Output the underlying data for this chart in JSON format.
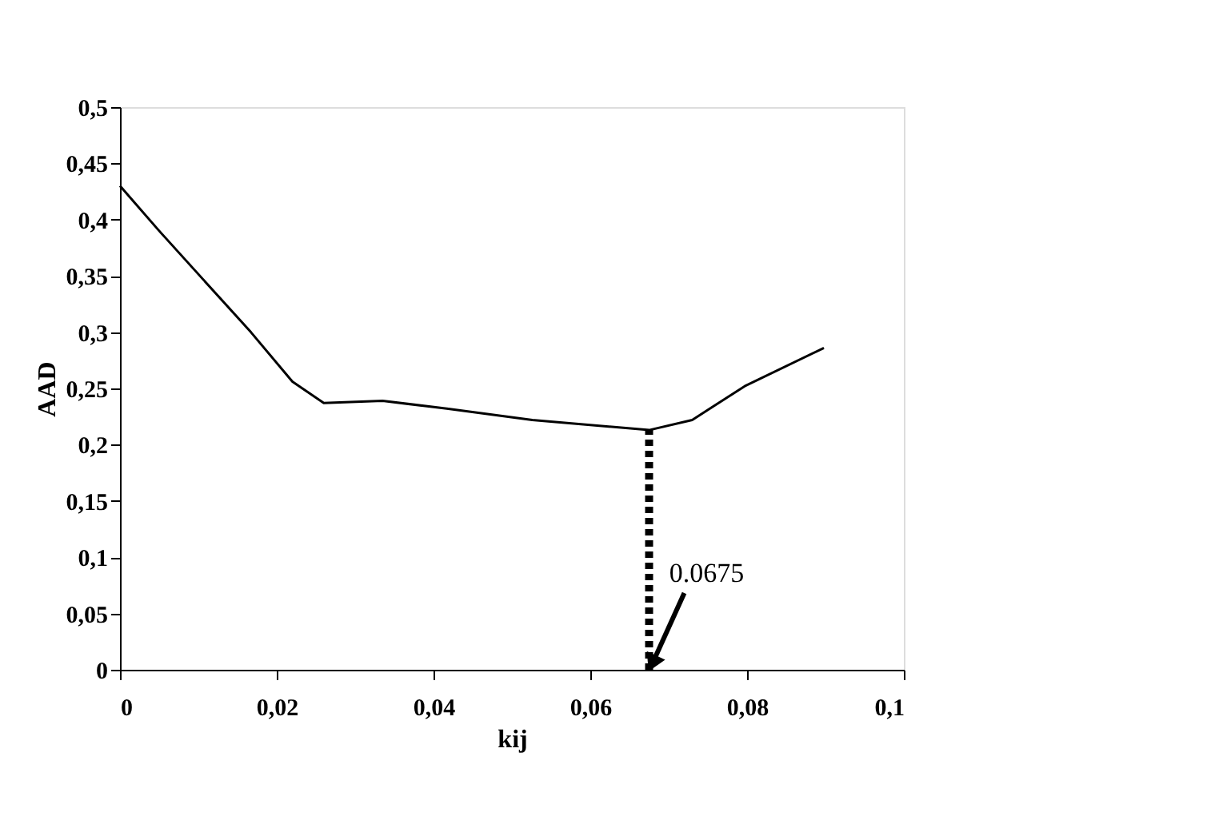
{
  "chart_data": {
    "type": "line",
    "xlabel": "kij",
    "ylabel": "AAD",
    "series": [
      {
        "color": "#000000",
        "line_style": "solid",
        "x": [
          0,
          0.005,
          0.0167,
          0.022,
          0.026,
          0.0335,
          0.0417,
          0.0526,
          0.0675,
          0.073,
          0.0797,
          0.0898
        ],
        "values": [
          0.43,
          0.39,
          0.3,
          0.256,
          0.237,
          0.239,
          0.232,
          0.222,
          0.213,
          0.222,
          0.252,
          0.286
        ]
      },
      {
        "type": "line",
        "color": "#000000",
        "line_style": "dotted",
        "x": [
          0.0675,
          0.0675
        ],
        "values": [
          0,
          0.213
        ]
      }
    ],
    "annotations": [
      {
        "text": "0.0675",
        "x": 0.0675,
        "y": 0
      }
    ],
    "xlim": [
      0,
      0.1
    ],
    "ylim": [
      0,
      0.5
    ],
    "xticks": [
      0,
      {
        "value": 0.02,
        "label": "0,02"
      },
      {
        "value": 0.04,
        "label": "0,04"
      },
      {
        "value": 0.06,
        "label": "0,06"
      },
      {
        "value": 0.08,
        "label": "0,08"
      },
      {
        "value": 0.1,
        "label": "0,1"
      }
    ],
    "yticks": [
      0,
      {
        "value": 0.05,
        "label": "0,05"
      },
      {
        "value": 0.1,
        "label": "0,1"
      },
      {
        "value": 0.15,
        "label": "0,15"
      },
      {
        "value": 0.2,
        "label": "0,2"
      },
      {
        "value": 0.25,
        "label": "0,25"
      },
      {
        "value": 0.3,
        "label": "0,3"
      },
      {
        "value": 0.35,
        "label": "0,35"
      },
      {
        "value": 0.4,
        "label": "0,4"
      },
      {
        "value": 0.45,
        "label": "0,45"
      },
      {
        "value": 0.5,
        "label": "0,5"
      }
    ],
    "grid": false
  }
}
